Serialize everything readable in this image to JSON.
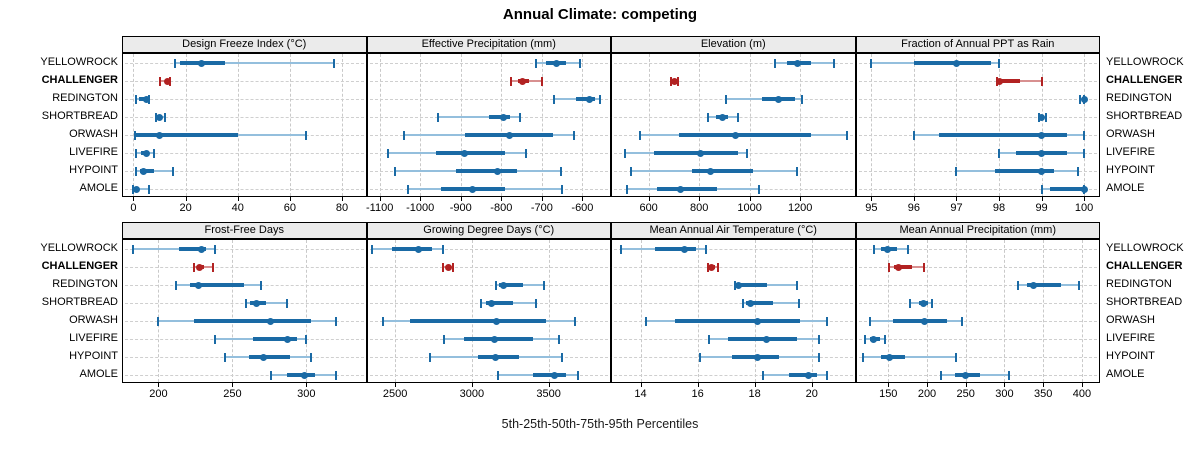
{
  "title": "Annual Climate: competing",
  "caption": "5th-25th-50th-75th-95th Percentiles",
  "sites": [
    "YELLOWROCK",
    "CHALLENGER",
    "REDINGTON",
    "SHORTBREAD",
    "ORWASH",
    "LIVEFIRE",
    "HYPOINT",
    "AMOLE"
  ],
  "highlight_site": "CHALLENGER",
  "colors": {
    "series": "#1a6aa5",
    "series_light": "#94bfdd",
    "highlight": "#b22222",
    "highlight_light": "#d89090",
    "grid": "#c9c9c9",
    "strip_bg": "#ebebeb",
    "panel_border": "#000000"
  },
  "chart_data": {
    "type": "dot-whisker-trellis",
    "percentile_labels": [
      "5th",
      "25th",
      "50th",
      "75th",
      "95th"
    ],
    "layout": {
      "rows": 2,
      "cols": 4,
      "legend": "none",
      "grid": "dashed"
    },
    "panels": [
      {
        "title": "Design Freeze Index (°C)",
        "row": 0,
        "col": 0,
        "axis_ticks": [
          0,
          20,
          40,
          60,
          80
        ],
        "axis_range": [
          -4,
          89
        ],
        "series": [
          {
            "site": "YELLOWROCK",
            "p": [
              16,
              18,
              26,
              35,
              77
            ]
          },
          {
            "site": "CHALLENGER",
            "p": [
              10,
              12,
              13,
              13.5,
              14
            ]
          },
          {
            "site": "REDINGTON",
            "p": [
              1,
              2,
              5,
              5.5,
              6
            ]
          },
          {
            "site": "SHORTBREAD",
            "p": [
              8.5,
              9,
              10,
              11,
              12
            ]
          },
          {
            "site": "ORWASH",
            "p": [
              0.5,
              1,
              10,
              40,
              66
            ]
          },
          {
            "site": "LIVEFIRE",
            "p": [
              1,
              3,
              5,
              6,
              8
            ]
          },
          {
            "site": "HYPOINT",
            "p": [
              1,
              2.5,
              4,
              8,
              15
            ]
          },
          {
            "site": "AMOLE",
            "p": [
              0,
              0.5,
              1,
              2,
              6
            ]
          }
        ]
      },
      {
        "title": "Effective Precipitation (mm)",
        "row": 0,
        "col": 1,
        "axis_ticks": [
          -1100,
          -1000,
          -900,
          -800,
          -700,
          -600
        ],
        "axis_range": [
          -1130,
          -532
        ],
        "series": [
          {
            "site": "YELLOWROCK",
            "p": [
              -715,
              -690,
              -665,
              -640,
              -605
            ]
          },
          {
            "site": "CHALLENGER",
            "p": [
              -775,
              -758,
              -748,
              -732,
              -700
            ]
          },
          {
            "site": "REDINGTON",
            "p": [
              -670,
              -615,
              -582,
              -568,
              -556
            ]
          },
          {
            "site": "SHORTBREAD",
            "p": [
              -955,
              -830,
              -795,
              -778,
              -755
            ]
          },
          {
            "site": "ORWASH",
            "p": [
              -1040,
              -890,
              -780,
              -672,
              -620
            ]
          },
          {
            "site": "LIVEFIRE",
            "p": [
              -1080,
              -962,
              -890,
              -790,
              -740
            ]
          },
          {
            "site": "HYPOINT",
            "p": [
              -1062,
              -912,
              -810,
              -762,
              -652
            ]
          },
          {
            "site": "AMOLE",
            "p": [
              -1030,
              -948,
              -870,
              -792,
              -650
            ]
          }
        ]
      },
      {
        "title": "Elevation (m)",
        "row": 0,
        "col": 2,
        "axis_ticks": [
          600,
          800,
          1000,
          1200
        ],
        "axis_range": [
          455,
          1415
        ],
        "series": [
          {
            "site": "YELLOWROCK",
            "p": [
              1100,
              1148,
              1190,
              1243,
              1332
            ]
          },
          {
            "site": "CHALLENGER",
            "p": [
              688,
              695,
              702,
              709,
              716
            ]
          },
          {
            "site": "REDINGTON",
            "p": [
              905,
              1048,
              1115,
              1178,
              1206
            ]
          },
          {
            "site": "SHORTBREAD",
            "p": [
              835,
              868,
              891,
              916,
              952
            ]
          },
          {
            "site": "ORWASH",
            "p": [
              565,
              720,
              945,
              1242,
              1386
            ]
          },
          {
            "site": "LIVEFIRE",
            "p": [
              505,
              622,
              806,
              953,
              990
            ]
          },
          {
            "site": "HYPOINT",
            "p": [
              532,
              770,
              846,
              1012,
              1186
            ]
          },
          {
            "site": "AMOLE",
            "p": [
              515,
              632,
              726,
              872,
              1036
            ]
          }
        ]
      },
      {
        "title": "Fraction of Annual PPT as Rain",
        "row": 0,
        "col": 3,
        "axis_ticks": [
          95,
          96,
          97,
          98,
          99,
          100
        ],
        "axis_range": [
          94.65,
          100.35
        ],
        "series": [
          {
            "site": "YELLOWROCK",
            "p": [
              95,
              96,
              97,
              97.8,
              98
            ]
          },
          {
            "site": "CHALLENGER",
            "p": [
              97.95,
              98,
              98,
              98.5,
              99
            ]
          },
          {
            "site": "REDINGTON",
            "p": [
              99.9,
              99.95,
              100,
              100,
              100
            ]
          },
          {
            "site": "SHORTBREAD",
            "p": [
              98.95,
              99,
              99,
              99.05,
              99.1
            ]
          },
          {
            "site": "ORWASH",
            "p": [
              96,
              96.6,
              99,
              99.6,
              100
            ]
          },
          {
            "site": "LIVEFIRE",
            "p": [
              98,
              98.4,
              99,
              99.6,
              100
            ]
          },
          {
            "site": "HYPOINT",
            "p": [
              97,
              97.9,
              99,
              99.3,
              99.85
            ]
          },
          {
            "site": "AMOLE",
            "p": [
              99,
              99.2,
              100,
              100,
              100
            ]
          }
        ]
      },
      {
        "title": "Frost-Free Days",
        "row": 1,
        "col": 0,
        "axis_ticks": [
          200,
          250,
          300
        ],
        "axis_range": [
          176,
          340
        ],
        "series": [
          {
            "site": "YELLOWROCK",
            "p": [
              183,
              214,
              229,
              232,
              238
            ]
          },
          {
            "site": "CHALLENGER",
            "p": [
              224,
              226,
              228,
              231,
              237
            ]
          },
          {
            "site": "REDINGTON",
            "p": [
              212,
              221,
              227,
              258,
              269
            ]
          },
          {
            "site": "SHORTBREAD",
            "p": [
              259,
              262,
              266,
              273,
              287
            ]
          },
          {
            "site": "ORWASH",
            "p": [
              200,
              224,
              276,
              303,
              320
            ]
          },
          {
            "site": "LIVEFIRE",
            "p": [
              238,
              264,
              287,
              294,
              300
            ]
          },
          {
            "site": "HYPOINT",
            "p": [
              245,
              261,
              271,
              289,
              303
            ]
          },
          {
            "site": "AMOLE",
            "p": [
              276,
              287,
              299,
              306,
              320
            ]
          }
        ]
      },
      {
        "title": "Growing Degree Days (°C)",
        "row": 1,
        "col": 1,
        "axis_ticks": [
          2500,
          3000,
          3500
        ],
        "axis_range": [
          2320,
          3900
        ],
        "series": [
          {
            "site": "YELLOWROCK",
            "p": [
              2350,
              2480,
              2650,
              2740,
              2810
            ]
          },
          {
            "site": "CHALLENGER",
            "p": [
              2815,
              2830,
              2845,
              2860,
              2875
            ]
          },
          {
            "site": "REDINGTON",
            "p": [
              3155,
              3180,
              3205,
              3330,
              3470
            ]
          },
          {
            "site": "SHORTBREAD",
            "p": [
              3060,
              3095,
              3130,
              3270,
              3420
            ]
          },
          {
            "site": "ORWASH",
            "p": [
              2420,
              2600,
              3160,
              3480,
              3670
            ]
          },
          {
            "site": "LIVEFIRE",
            "p": [
              2820,
              2950,
              3150,
              3400,
              3570
            ]
          },
          {
            "site": "HYPOINT",
            "p": [
              2730,
              3040,
              3155,
              3310,
              3590
            ]
          },
          {
            "site": "AMOLE",
            "p": [
              3170,
              3400,
              3540,
              3615,
              3690
            ]
          }
        ]
      },
      {
        "title": "Mean Annual Air Temperature (°C)",
        "row": 1,
        "col": 2,
        "axis_ticks": [
          14,
          16,
          18,
          20
        ],
        "axis_range": [
          13.0,
          21.5
        ],
        "series": [
          {
            "site": "YELLOWROCK",
            "p": [
              13.3,
              14.5,
              15.55,
              15.95,
              16.3
            ]
          },
          {
            "site": "CHALLENGER",
            "p": [
              16.35,
              16.45,
              16.5,
              16.6,
              16.7
            ]
          },
          {
            "site": "REDINGTON",
            "p": [
              17.3,
              17.35,
              17.45,
              18.45,
              19.5
            ]
          },
          {
            "site": "SHORTBREAD",
            "p": [
              17.6,
              17.7,
              17.85,
              18.65,
              19.55
            ]
          },
          {
            "site": "ORWASH",
            "p": [
              14.2,
              15.2,
              18.1,
              19.6,
              20.55
            ]
          },
          {
            "site": "LIVEFIRE",
            "p": [
              16.4,
              17.05,
              18.4,
              19.5,
              20.25
            ]
          },
          {
            "site": "HYPOINT",
            "p": [
              16.1,
              17.2,
              18.1,
              18.85,
              20.25
            ]
          },
          {
            "site": "AMOLE",
            "p": [
              18.3,
              19.2,
              19.9,
              20.2,
              20.55
            ]
          }
        ]
      },
      {
        "title": "Mean Annual Precipitation (mm)",
        "row": 1,
        "col": 3,
        "axis_ticks": [
          150,
          200,
          250,
          300,
          350,
          400
        ],
        "axis_range": [
          109,
          422
        ],
        "series": [
          {
            "site": "YELLOWROCK",
            "p": [
              131,
              140,
              149,
              161,
              176
            ]
          },
          {
            "site": "CHALLENGER",
            "p": [
              151,
              157,
              163,
              181,
              196
            ]
          },
          {
            "site": "REDINGTON",
            "p": [
              318,
              329,
              338,
              373,
              396
            ]
          },
          {
            "site": "SHORTBREAD",
            "p": [
              178,
              190,
              196,
              201,
              206
            ]
          },
          {
            "site": "ORWASH",
            "p": [
              126,
              156,
              197,
              226,
              245
            ]
          },
          {
            "site": "LIVEFIRE",
            "p": [
              120,
              126,
              131,
              139,
              146
            ]
          },
          {
            "site": "HYPOINT",
            "p": [
              117,
              141,
              152,
              171,
              238
            ]
          },
          {
            "site": "AMOLE",
            "p": [
              218,
              236,
              250,
              269,
              306
            ]
          }
        ]
      }
    ]
  }
}
